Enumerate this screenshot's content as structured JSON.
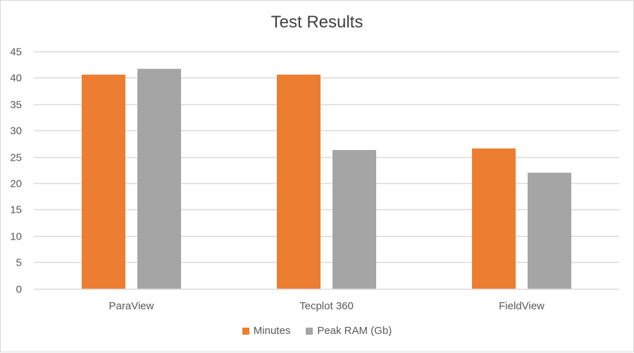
{
  "chart_data": {
    "type": "bar",
    "title": "Test Results",
    "xlabel": "",
    "ylabel": "",
    "categories": [
      "ParaView",
      "Tecplot 360",
      "FieldView"
    ],
    "series": [
      {
        "name": "Minutes",
        "color": "#ED7D31",
        "values": [
          40.6,
          40.6,
          26.6
        ]
      },
      {
        "name": "Peak RAM (Gb)",
        "color": "#A5A5A5",
        "values": [
          41.7,
          26.3,
          22.0
        ]
      }
    ],
    "ylim": [
      0,
      45
    ],
    "yticks": [
      0,
      5,
      10,
      15,
      20,
      25,
      30,
      35,
      40,
      45
    ],
    "grid": true,
    "legend_position": "bottom"
  },
  "colors": {
    "gridline": "#D9D9D9",
    "axis_text": "#595959",
    "title_text": "#404040",
    "border": "#D9D9D9"
  }
}
